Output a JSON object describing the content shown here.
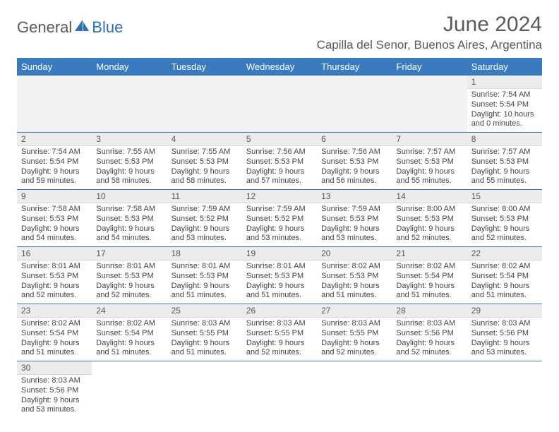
{
  "logo": {
    "general": "General",
    "blue": "Blue"
  },
  "title": "June 2024",
  "location": "Capilla del Senor, Buenos Aires, Argentina",
  "colors": {
    "header_bg": "#3a7bbf",
    "header_fg": "#ffffff",
    "daynum_bg": "#ececec",
    "empty_bg": "#f2f2f2",
    "rule": "#3a7bbf",
    "logo_dark": "#5a5a5a",
    "logo_blue": "#2d6fb5"
  },
  "weekdays": [
    "Sunday",
    "Monday",
    "Tuesday",
    "Wednesday",
    "Thursday",
    "Friday",
    "Saturday"
  ],
  "weeks": [
    [
      null,
      null,
      null,
      null,
      null,
      null,
      {
        "n": "1",
        "sr": "Sunrise: 7:54 AM",
        "ss": "Sunset: 5:54 PM",
        "dl": "Daylight: 10 hours and 0 minutes."
      }
    ],
    [
      {
        "n": "2",
        "sr": "Sunrise: 7:54 AM",
        "ss": "Sunset: 5:54 PM",
        "dl": "Daylight: 9 hours and 59 minutes."
      },
      {
        "n": "3",
        "sr": "Sunrise: 7:55 AM",
        "ss": "Sunset: 5:53 PM",
        "dl": "Daylight: 9 hours and 58 minutes."
      },
      {
        "n": "4",
        "sr": "Sunrise: 7:55 AM",
        "ss": "Sunset: 5:53 PM",
        "dl": "Daylight: 9 hours and 58 minutes."
      },
      {
        "n": "5",
        "sr": "Sunrise: 7:56 AM",
        "ss": "Sunset: 5:53 PM",
        "dl": "Daylight: 9 hours and 57 minutes."
      },
      {
        "n": "6",
        "sr": "Sunrise: 7:56 AM",
        "ss": "Sunset: 5:53 PM",
        "dl": "Daylight: 9 hours and 56 minutes."
      },
      {
        "n": "7",
        "sr": "Sunrise: 7:57 AM",
        "ss": "Sunset: 5:53 PM",
        "dl": "Daylight: 9 hours and 55 minutes."
      },
      {
        "n": "8",
        "sr": "Sunrise: 7:57 AM",
        "ss": "Sunset: 5:53 PM",
        "dl": "Daylight: 9 hours and 55 minutes."
      }
    ],
    [
      {
        "n": "9",
        "sr": "Sunrise: 7:58 AM",
        "ss": "Sunset: 5:53 PM",
        "dl": "Daylight: 9 hours and 54 minutes."
      },
      {
        "n": "10",
        "sr": "Sunrise: 7:58 AM",
        "ss": "Sunset: 5:53 PM",
        "dl": "Daylight: 9 hours and 54 minutes."
      },
      {
        "n": "11",
        "sr": "Sunrise: 7:59 AM",
        "ss": "Sunset: 5:52 PM",
        "dl": "Daylight: 9 hours and 53 minutes."
      },
      {
        "n": "12",
        "sr": "Sunrise: 7:59 AM",
        "ss": "Sunset: 5:52 PM",
        "dl": "Daylight: 9 hours and 53 minutes."
      },
      {
        "n": "13",
        "sr": "Sunrise: 7:59 AM",
        "ss": "Sunset: 5:53 PM",
        "dl": "Daylight: 9 hours and 53 minutes."
      },
      {
        "n": "14",
        "sr": "Sunrise: 8:00 AM",
        "ss": "Sunset: 5:53 PM",
        "dl": "Daylight: 9 hours and 52 minutes."
      },
      {
        "n": "15",
        "sr": "Sunrise: 8:00 AM",
        "ss": "Sunset: 5:53 PM",
        "dl": "Daylight: 9 hours and 52 minutes."
      }
    ],
    [
      {
        "n": "16",
        "sr": "Sunrise: 8:01 AM",
        "ss": "Sunset: 5:53 PM",
        "dl": "Daylight: 9 hours and 52 minutes."
      },
      {
        "n": "17",
        "sr": "Sunrise: 8:01 AM",
        "ss": "Sunset: 5:53 PM",
        "dl": "Daylight: 9 hours and 52 minutes."
      },
      {
        "n": "18",
        "sr": "Sunrise: 8:01 AM",
        "ss": "Sunset: 5:53 PM",
        "dl": "Daylight: 9 hours and 51 minutes."
      },
      {
        "n": "19",
        "sr": "Sunrise: 8:01 AM",
        "ss": "Sunset: 5:53 PM",
        "dl": "Daylight: 9 hours and 51 minutes."
      },
      {
        "n": "20",
        "sr": "Sunrise: 8:02 AM",
        "ss": "Sunset: 5:53 PM",
        "dl": "Daylight: 9 hours and 51 minutes."
      },
      {
        "n": "21",
        "sr": "Sunrise: 8:02 AM",
        "ss": "Sunset: 5:54 PM",
        "dl": "Daylight: 9 hours and 51 minutes."
      },
      {
        "n": "22",
        "sr": "Sunrise: 8:02 AM",
        "ss": "Sunset: 5:54 PM",
        "dl": "Daylight: 9 hours and 51 minutes."
      }
    ],
    [
      {
        "n": "23",
        "sr": "Sunrise: 8:02 AM",
        "ss": "Sunset: 5:54 PM",
        "dl": "Daylight: 9 hours and 51 minutes."
      },
      {
        "n": "24",
        "sr": "Sunrise: 8:02 AM",
        "ss": "Sunset: 5:54 PM",
        "dl": "Daylight: 9 hours and 51 minutes."
      },
      {
        "n": "25",
        "sr": "Sunrise: 8:03 AM",
        "ss": "Sunset: 5:55 PM",
        "dl": "Daylight: 9 hours and 51 minutes."
      },
      {
        "n": "26",
        "sr": "Sunrise: 8:03 AM",
        "ss": "Sunset: 5:55 PM",
        "dl": "Daylight: 9 hours and 52 minutes."
      },
      {
        "n": "27",
        "sr": "Sunrise: 8:03 AM",
        "ss": "Sunset: 5:55 PM",
        "dl": "Daylight: 9 hours and 52 minutes."
      },
      {
        "n": "28",
        "sr": "Sunrise: 8:03 AM",
        "ss": "Sunset: 5:56 PM",
        "dl": "Daylight: 9 hours and 52 minutes."
      },
      {
        "n": "29",
        "sr": "Sunrise: 8:03 AM",
        "ss": "Sunset: 5:56 PM",
        "dl": "Daylight: 9 hours and 53 minutes."
      }
    ],
    [
      {
        "n": "30",
        "sr": "Sunrise: 8:03 AM",
        "ss": "Sunset: 5:56 PM",
        "dl": "Daylight: 9 hours and 53 minutes."
      },
      null,
      null,
      null,
      null,
      null,
      null
    ]
  ]
}
